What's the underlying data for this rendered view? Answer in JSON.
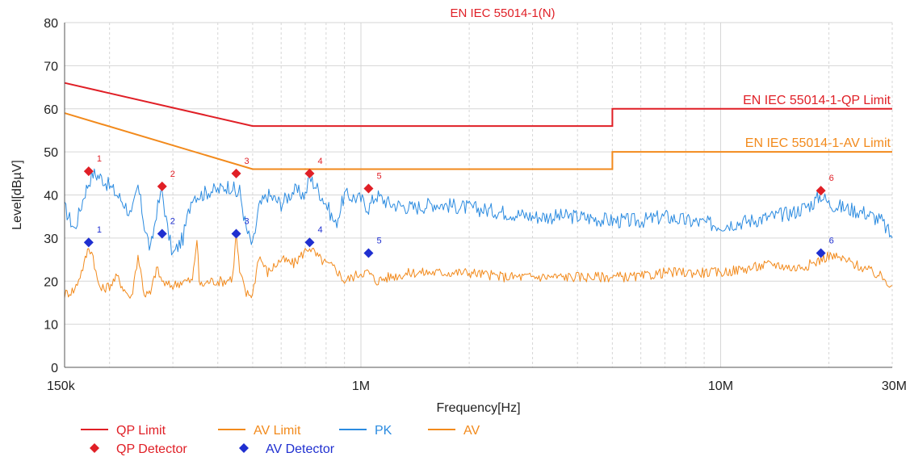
{
  "chart_data": {
    "type": "line",
    "title": "EN IEC 55014-1(N)",
    "xlabel": "Frequency[Hz]",
    "ylabel": "Level[dBµV]",
    "x_scale": "log",
    "xlim_hz": [
      150000,
      30000000
    ],
    "ylim": [
      0,
      80
    ],
    "y_ticks": [
      0,
      10,
      20,
      30,
      40,
      50,
      60,
      70,
      80
    ],
    "x_tick_labels": [
      {
        "value": 150000,
        "label": "150k"
      },
      {
        "value": 1000000,
        "label": "1M"
      },
      {
        "value": 10000000,
        "label": "10M"
      },
      {
        "value": 30000000,
        "label": "30M"
      }
    ],
    "grid": true,
    "limit_lines": [
      {
        "name": "QP Limit",
        "annotation": "EN IEC 55014-1-QP Limit",
        "color": "#e01f26",
        "points": [
          [
            150000,
            66
          ],
          [
            500000,
            56
          ],
          [
            5000000,
            56
          ],
          [
            5000000,
            60
          ],
          [
            30000000,
            60
          ]
        ]
      },
      {
        "name": "AV Limit",
        "annotation": "EN IEC 55014-1-AV Limit",
        "color": "#f28a1c",
        "points": [
          [
            150000,
            59
          ],
          [
            500000,
            46
          ],
          [
            5000000,
            46
          ],
          [
            5000000,
            50
          ],
          [
            30000000,
            50
          ]
        ]
      }
    ],
    "series": [
      {
        "name": "PK",
        "color": "#2b8be0",
        "x": [
          150000,
          160000,
          170000,
          175000,
          180000,
          190000,
          200000,
          210000,
          220000,
          230000,
          240000,
          250000,
          260000,
          270000,
          280000,
          290000,
          300000,
          320000,
          340000,
          360000,
          380000,
          400000,
          420000,
          440000,
          450000,
          460000,
          480000,
          500000,
          520000,
          550000,
          600000,
          650000,
          700000,
          720000,
          750000,
          800000,
          850000,
          900000,
          1000000,
          1050000,
          1100000,
          1200000,
          1400000,
          1600000,
          2000000,
          2500000,
          3000000,
          4000000,
          5000000,
          6000000,
          7000000,
          8000000,
          10000000,
          12000000,
          14000000,
          16000000,
          18000000,
          19000000,
          20000000,
          22000000,
          25000000,
          28000000,
          30000000
        ],
        "values": [
          37,
          32,
          40,
          43,
          45,
          44,
          42,
          40,
          38,
          35,
          42,
          33,
          27,
          36,
          41,
          32,
          26,
          30,
          40,
          40,
          41,
          41,
          42,
          42,
          40,
          41,
          32,
          28,
          37,
          40,
          38,
          41,
          40,
          44,
          42,
          38,
          33,
          40,
          39,
          37,
          40,
          38,
          37,
          38,
          37,
          36,
          35,
          35,
          34,
          34,
          35,
          34,
          33,
          34,
          35,
          36,
          38,
          40,
          38,
          37,
          36,
          34,
          30
        ]
      },
      {
        "name": "AV",
        "color": "#f28a1c",
        "x": [
          150000,
          160000,
          170000,
          175000,
          180000,
          185000,
          190000,
          200000,
          210000,
          220000,
          230000,
          240000,
          250000,
          260000,
          270000,
          280000,
          290000,
          300000,
          320000,
          340000,
          350000,
          355000,
          360000,
          380000,
          400000,
          420000,
          440000,
          450000,
          460000,
          480000,
          500000,
          520000,
          550000,
          600000,
          650000,
          700000,
          720000,
          750000,
          800000,
          850000,
          900000,
          1000000,
          1050000,
          1100000,
          1200000,
          1400000,
          1600000,
          2000000,
          2500000,
          3000000,
          4000000,
          5000000,
          6000000,
          7000000,
          8000000,
          10000000,
          12000000,
          14000000,
          16000000,
          18000000,
          19000000,
          20000000,
          22000000,
          25000000,
          28000000,
          30000000
        ],
        "values": [
          17,
          18,
          24,
          28,
          26,
          20,
          18,
          19,
          21,
          18,
          16,
          26,
          17,
          17,
          23,
          20,
          19,
          19,
          20,
          20,
          30,
          20,
          19,
          20,
          20,
          20,
          21,
          31,
          22,
          17,
          17,
          26,
          22,
          25,
          24,
          27,
          28,
          26,
          24,
          23,
          20,
          22,
          22,
          20,
          21,
          22,
          22,
          22,
          21,
          21,
          21,
          21,
          21,
          22,
          22,
          22,
          23,
          24,
          23,
          24,
          25,
          26,
          25,
          23,
          21,
          19
        ]
      }
    ],
    "markers": [
      {
        "name": "QP Detector",
        "color": "#e01f26",
        "points": [
          {
            "label": "1",
            "x": 175000,
            "y": 45.5
          },
          {
            "label": "2",
            "x": 280000,
            "y": 42
          },
          {
            "label": "3",
            "x": 450000,
            "y": 45
          },
          {
            "label": "4",
            "x": 720000,
            "y": 45
          },
          {
            "label": "5",
            "x": 1050000,
            "y": 41.5
          },
          {
            "label": "6",
            "x": 19000000,
            "y": 41
          }
        ]
      },
      {
        "name": "AV Detector",
        "color": "#1f2fd0",
        "points": [
          {
            "label": "1",
            "x": 175000,
            "y": 29
          },
          {
            "label": "2",
            "x": 280000,
            "y": 31
          },
          {
            "label": "3",
            "x": 450000,
            "y": 31
          },
          {
            "label": "4",
            "x": 720000,
            "y": 29
          },
          {
            "label": "5",
            "x": 1050000,
            "y": 26.5
          },
          {
            "label": "6",
            "x": 19000000,
            "y": 26.5
          }
        ]
      }
    ],
    "legend": {
      "placement": "bottom-left",
      "entries": [
        {
          "label": "QP Limit",
          "kind": "line",
          "color": "#e01f26"
        },
        {
          "label": "AV Limit",
          "kind": "line",
          "color": "#f28a1c"
        },
        {
          "label": "PK",
          "kind": "line",
          "color": "#2b8be0"
        },
        {
          "label": "AV",
          "kind": "line",
          "color": "#f28a1c"
        },
        {
          "label": "QP Detector",
          "kind": "marker",
          "color": "#e01f26"
        },
        {
          "label": "AV Detector",
          "kind": "marker",
          "color": "#1f2fd0"
        }
      ]
    }
  }
}
